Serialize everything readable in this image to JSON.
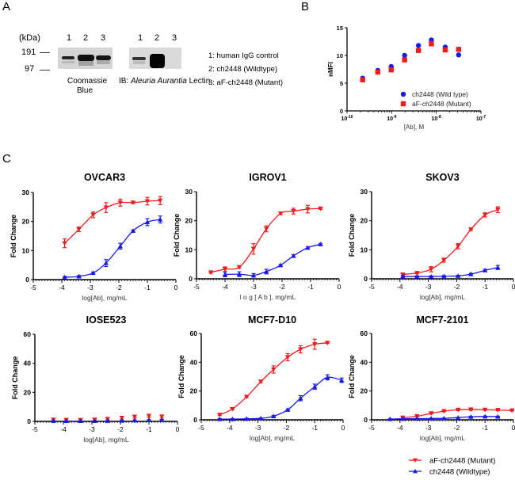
{
  "panels": {
    "A": {
      "letter": "A",
      "kda_label": "(kDa)",
      "markers": [
        "191",
        "97"
      ],
      "lane_numbers": [
        "1",
        "2",
        "3"
      ],
      "gel1_caption_line1": "Coomassie",
      "gel1_caption_line2": "Blue",
      "gel2_caption_prefix": "IB: ",
      "gel2_caption_italic": "Aleuria Aurantia",
      "gel2_caption_suffix": " Lectin",
      "lane_legend": [
        "1: human IgG control",
        "2: ch2448 (Wildtype)",
        "3: aF-ch2448 (Mutant)"
      ]
    },
    "B": {
      "letter": "B"
    },
    "C": {
      "letter": "C"
    }
  },
  "colors": {
    "mutant": "#ee1c1c",
    "wildtype": "#1a1aee",
    "axis": "#000000"
  },
  "chart_data": [
    {
      "id": "B",
      "type": "scatter",
      "title": "",
      "xlabel": "[Ab], M",
      "ylabel": "nMFI",
      "xscale": "log10",
      "xlim_log10": [
        -10,
        -7
      ],
      "xticks": [
        "10^-10",
        "10^-9",
        "10^-8",
        "10^-7"
      ],
      "ylim": [
        0,
        15
      ],
      "yticks": [
        0,
        5,
        10,
        15
      ],
      "legend": "bottom-right",
      "series": [
        {
          "name": "ch2448 (Wild type)",
          "marker": "circle",
          "color": "#1a1aee",
          "x_log10": [
            -9.65,
            -9.31,
            -9.01,
            -8.71,
            -8.4,
            -8.11,
            -7.8,
            -7.5
          ],
          "y": [
            5.9,
            7.3,
            8.0,
            10.0,
            11.8,
            12.8,
            11.5,
            10.1
          ]
        },
        {
          "name": "aF-ch2448 (Mutant)",
          "marker": "square",
          "color": "#ee1c1c",
          "x_log10": [
            -9.65,
            -9.31,
            -9.01,
            -8.71,
            -8.4,
            -8.11,
            -7.8,
            -7.5
          ],
          "y": [
            5.6,
            7.0,
            7.4,
            9.2,
            10.9,
            12.1,
            11.0,
            11.1
          ]
        }
      ]
    },
    {
      "id": "OVCAR3",
      "type": "line",
      "title": "OVCAR3",
      "xlabel": "log[Ab], mg/mL",
      "ylabel": "Fold Change",
      "xlim": [
        -5,
        0
      ],
      "xticks": [
        -5,
        -4,
        -3,
        -2,
        -1,
        0
      ],
      "ylim": [
        0,
        30
      ],
      "yticks": [
        0,
        10,
        20,
        30
      ],
      "series": [
        {
          "name": "aF-ch2448 (Mutant)",
          "marker": "triangle-down",
          "color": "#ee1c1c",
          "x": [
            -3.9,
            -3.4,
            -2.9,
            -2.45,
            -1.95,
            -1.5,
            -1.0,
            -0.55
          ],
          "y": [
            12.5,
            17.3,
            22.3,
            24.8,
            26.5,
            26.5,
            27.0,
            27.2
          ],
          "err": [
            1.5,
            0.8,
            1.0,
            1.7,
            1.2,
            0.3,
            1.3,
            1.4
          ]
        },
        {
          "name": "ch2448 (Wildtype)",
          "marker": "triangle-up",
          "color": "#1a1aee",
          "x": [
            -3.9,
            -3.4,
            -2.9,
            -2.45,
            -1.95,
            -1.5,
            -1.0,
            -0.55
          ],
          "y": [
            0.8,
            1.1,
            2.3,
            5.7,
            11.5,
            16.8,
            19.8,
            20.7
          ],
          "err": [
            0.3,
            0.3,
            0.3,
            1.2,
            1.0,
            0.3,
            1.2,
            1.2
          ]
        }
      ]
    },
    {
      "id": "IGROV1",
      "type": "line",
      "title": "IGROV1",
      "xlabel": "l o g [ A b ], mg/mL",
      "ylabel": "Fold Change",
      "xlim": [
        -5,
        0
      ],
      "xticks": [
        -5,
        -4,
        -3,
        -2,
        -1,
        0
      ],
      "ylim": [
        0,
        30
      ],
      "yticks": [
        0,
        10,
        20,
        30
      ],
      "series": [
        {
          "name": "aF-ch2448 (Mutant)",
          "marker": "triangle-down",
          "color": "#ee1c1c",
          "x": [
            -4.5,
            -4.0,
            -3.5,
            -3.0,
            -2.55,
            -2.05,
            -1.6,
            -1.1,
            -0.65
          ],
          "y": [
            2.2,
            3.3,
            4.0,
            10.3,
            17.2,
            22.5,
            23.3,
            24.0,
            24.2
          ],
          "err": [
            0.3,
            0.8,
            0.3,
            1.8,
            1.0,
            0.4,
            1.0,
            1.3,
            0.3
          ]
        },
        {
          "name": "ch2448 (Wildtype)",
          "marker": "triangle-up",
          "color": "#1a1aee",
          "x": [
            -4.0,
            -3.5,
            -3.0,
            -2.55,
            -2.05,
            -1.6,
            -1.1,
            -0.65
          ],
          "y": [
            1.5,
            1.6,
            1.2,
            2.5,
            4.7,
            7.9,
            10.7,
            11.9
          ],
          "err": [
            0.8,
            0.8,
            0.6,
            0.8,
            0.3,
            0.4,
            0.3,
            0.3
          ]
        }
      ]
    },
    {
      "id": "SKOV3",
      "type": "line",
      "title": "SKOV3",
      "xlabel": "log[Ab], mg/mL",
      "ylabel": "Fold Change",
      "xlim": [
        -5,
        0
      ],
      "xticks": [
        -5,
        -4,
        -3,
        -2,
        -1,
        0
      ],
      "ylim": [
        0,
        30
      ],
      "yticks": [
        0,
        10,
        20,
        30
      ],
      "series": [
        {
          "name": "aF-ch2448 (Mutant)",
          "marker": "triangle-down",
          "color": "#ee1c1c",
          "x": [
            -3.9,
            -3.4,
            -2.9,
            -2.45,
            -1.95,
            -1.5,
            -1.0,
            -0.55
          ],
          "y": [
            1.5,
            2.0,
            3.3,
            6.4,
            11.2,
            17.0,
            22.0,
            23.8
          ],
          "err": [
            0.3,
            0.3,
            0.9,
            0.7,
            0.9,
            0.3,
            0.7,
            1.0
          ]
        },
        {
          "name": "ch2448 (Wildtype)",
          "marker": "triangle-up",
          "color": "#1a1aee",
          "x": [
            -3.9,
            -3.4,
            -2.9,
            -2.45,
            -1.95,
            -1.5,
            -1.0,
            -0.55
          ],
          "y": [
            0.8,
            0.8,
            0.8,
            0.9,
            1.0,
            1.6,
            2.9,
            3.9
          ],
          "err": [
            0.2,
            0.2,
            0.2,
            0.2,
            0.2,
            0.3,
            0.4,
            0.7
          ]
        }
      ]
    },
    {
      "id": "IOSE523",
      "type": "line",
      "title": "IOSE523",
      "xlabel": "log[Ab], mg/mL",
      "ylabel": "Fold Change",
      "xlim": [
        -5,
        0
      ],
      "xticks": [
        -5,
        -4,
        -3,
        -2,
        -1,
        0
      ],
      "ylim": [
        0,
        60
      ],
      "yticks": [
        0,
        20,
        40,
        60
      ],
      "series": [
        {
          "name": "aF-ch2448 (Mutant)",
          "marker": "triangle-down",
          "color": "#ee1c1c",
          "no_curve": true,
          "x": [
            -4.35,
            -3.9,
            -3.4,
            -2.9,
            -2.45,
            -1.95,
            -1.5,
            -1.0,
            -0.55
          ],
          "y": [
            1.2,
            1.0,
            1.0,
            1.2,
            1.7,
            2.4,
            3.2,
            3.8,
            3.3
          ],
          "err": [
            0.5,
            0.5,
            0.5,
            0.5,
            0.7,
            0.9,
            1.0,
            1.1,
            1.0
          ]
        },
        {
          "name": "ch2448 (Wildtype)",
          "marker": "triangle-up",
          "color": "#1a1aee",
          "no_curve": true,
          "x": [
            -4.35,
            -3.9,
            -3.4,
            -2.9,
            -2.45,
            -1.95,
            -1.5,
            -1.0,
            -0.55
          ],
          "y": [
            0.3,
            0.3,
            0.3,
            0.3,
            0.4,
            0.5,
            0.7,
            0.9,
            1.0
          ],
          "err": [
            0.2,
            0.2,
            0.2,
            0.2,
            0.2,
            0.2,
            0.3,
            0.3,
            0.3
          ]
        }
      ]
    },
    {
      "id": "MCF7-D10",
      "type": "line",
      "title": "MCF7-D10",
      "xlabel": "log[Ab], mg/mL",
      "ylabel": "Fold Change",
      "xlim": [
        -5,
        0
      ],
      "xticks": [
        -5,
        -4,
        -3,
        -2,
        -1,
        0
      ],
      "ylim": [
        0,
        60
      ],
      "yticks": [
        0,
        20,
        40,
        60
      ],
      "series": [
        {
          "name": "aF-ch2448 (Mutant)",
          "marker": "triangle-down",
          "color": "#ee1c1c",
          "x": [
            -4.35,
            -3.9,
            -3.4,
            -2.9,
            -2.45,
            -1.95,
            -1.5,
            -1.0,
            -0.55
          ],
          "y": [
            3.5,
            7.5,
            16.0,
            26.5,
            35.0,
            43.5,
            49.0,
            52.5,
            53.5
          ],
          "err": [
            0.5,
            0.5,
            0.5,
            0.8,
            2.5,
            2.5,
            2.5,
            3.5,
            0.5
          ]
        },
        {
          "name": "ch2448 (Wildtype)",
          "marker": "triangle-up",
          "color": "#1a1aee",
          "x": [
            -4.35,
            -3.9,
            -3.4,
            -2.9,
            -2.45,
            -1.95,
            -1.5,
            -1.0,
            -0.55,
            -0.05
          ],
          "y": [
            0.5,
            0.5,
            0.7,
            1.0,
            2.5,
            7.0,
            15.0,
            23.0,
            29.5,
            27.5
          ],
          "err": [
            0.3,
            0.3,
            0.3,
            0.3,
            0.5,
            0.5,
            1.8,
            1.8,
            1.8,
            1.5
          ]
        }
      ]
    },
    {
      "id": "MCF7-2101",
      "type": "line",
      "title": "MCF7-2101",
      "xlabel": "log[Ab], mg/mL",
      "ylabel": "Fold Change",
      "xlim": [
        -5,
        0
      ],
      "xticks": [
        -5,
        -4,
        -3,
        -2,
        -1,
        0
      ],
      "ylim": [
        0,
        60
      ],
      "yticks": [
        0,
        20,
        40,
        60
      ],
      "series": [
        {
          "name": "aF-ch2448 (Mutant)",
          "marker": "triangle-down",
          "color": "#ee1c1c",
          "x": [
            -3.9,
            -3.4,
            -2.9,
            -2.45,
            -1.95,
            -1.5,
            -1.0,
            -0.55,
            -0.05
          ],
          "y": [
            1.5,
            2.5,
            4.5,
            6.0,
            7.0,
            7.2,
            7.0,
            6.8,
            6.5
          ],
          "err": [
            0.4,
            0.4,
            0.4,
            0.4,
            0.6,
            0.6,
            0.4,
            0.4,
            0.4
          ]
        },
        {
          "name": "ch2448 (Wildtype)",
          "marker": "triangle-up",
          "color": "#1a1aee",
          "x": [
            -4.35,
            -3.9,
            -3.4,
            -2.9,
            -2.45,
            -1.95,
            -1.5,
            -1.0,
            -0.55
          ],
          "y": [
            0.5,
            0.7,
            0.8,
            0.9,
            1.0,
            1.5,
            2.1,
            2.3,
            2.2
          ],
          "err": [
            0.2,
            0.2,
            0.2,
            0.2,
            0.2,
            0.2,
            0.3,
            0.3,
            0.3
          ]
        }
      ]
    }
  ],
  "legend_c": [
    {
      "name": "aF-ch2448 (Mutant)",
      "marker": "triangle-down",
      "color": "#ee1c1c"
    },
    {
      "name": "ch2448 (Wildtype)",
      "marker": "triangle-up",
      "color": "#1a1aee"
    }
  ]
}
